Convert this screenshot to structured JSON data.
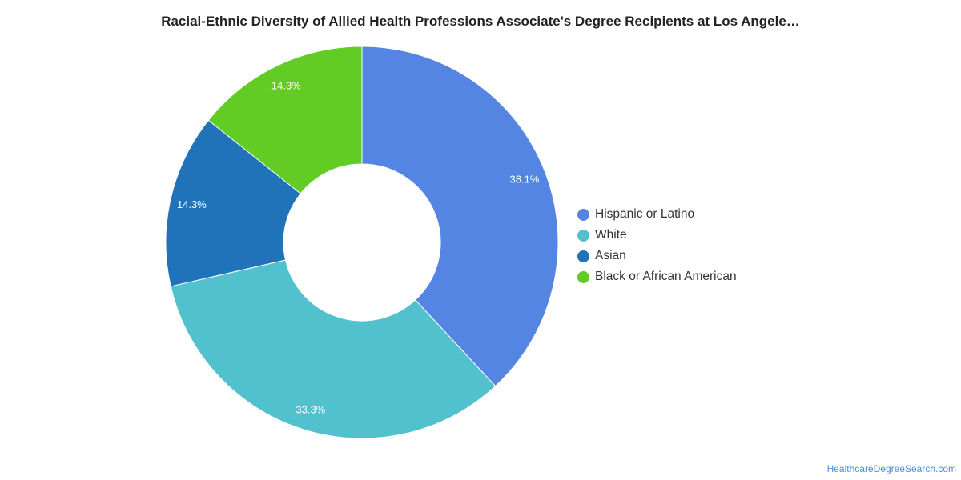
{
  "chart_data": {
    "type": "pie",
    "title": "Racial-Ethnic Diversity of Allied Health Professions Associate's Degree Recipients at Los Angele…",
    "donut": true,
    "legend_position": "right",
    "slices": [
      {
        "name": "Hispanic or Latino",
        "value": 38.1,
        "label": "38.1%",
        "color": "#5485e3"
      },
      {
        "name": "White",
        "value": 33.3,
        "label": "33.3%",
        "color": "#52c1ce"
      },
      {
        "name": "Asian",
        "value": 14.3,
        "label": "14.3%",
        "color": "#2173b9"
      },
      {
        "name": "Black or African American",
        "value": 14.3,
        "label": "14.3%",
        "color": "#62cc25"
      }
    ]
  },
  "footer": {
    "source": "HealthcareDegreeSearch.com"
  }
}
